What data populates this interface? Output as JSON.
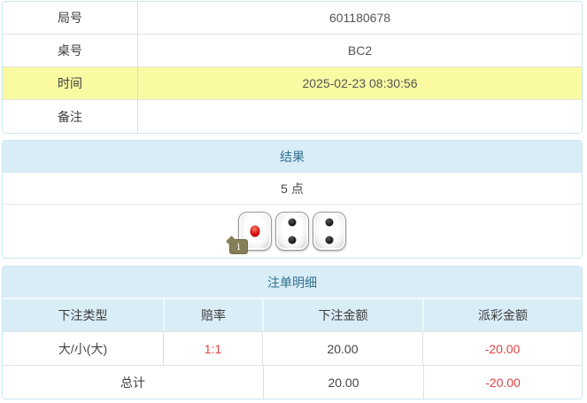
{
  "colors": {
    "panel_border": "#c9e6f1",
    "header_bg": "#d9edf7",
    "header_text": "#31708f",
    "highlight_yellow": "#fafaa3",
    "negative_red": "#e04343"
  },
  "game_info": {
    "rows": [
      {
        "label": "局号",
        "value": "601180678",
        "highlight": false
      },
      {
        "label": "桌号",
        "value": "BC2",
        "highlight": false
      },
      {
        "label": "时间",
        "value": "2025-02-23 08:30:56",
        "highlight": true
      },
      {
        "label": "备注",
        "value": "",
        "highlight": false
      }
    ]
  },
  "result_panel": {
    "title": "结果",
    "points_text": "5 点",
    "dice": [
      1,
      2,
      2
    ],
    "info_badge": "i"
  },
  "bet_panel": {
    "title": "注单明细",
    "columns": [
      "下注类型",
      "赔率",
      "下注金额",
      "派彩金额"
    ],
    "rows": [
      {
        "type": "大/小(大)",
        "odds": "1:1",
        "bet": "20.00",
        "payout": "-20.00"
      }
    ],
    "total": {
      "label": "总计",
      "bet": "20.00",
      "payout": "-20.00"
    }
  }
}
